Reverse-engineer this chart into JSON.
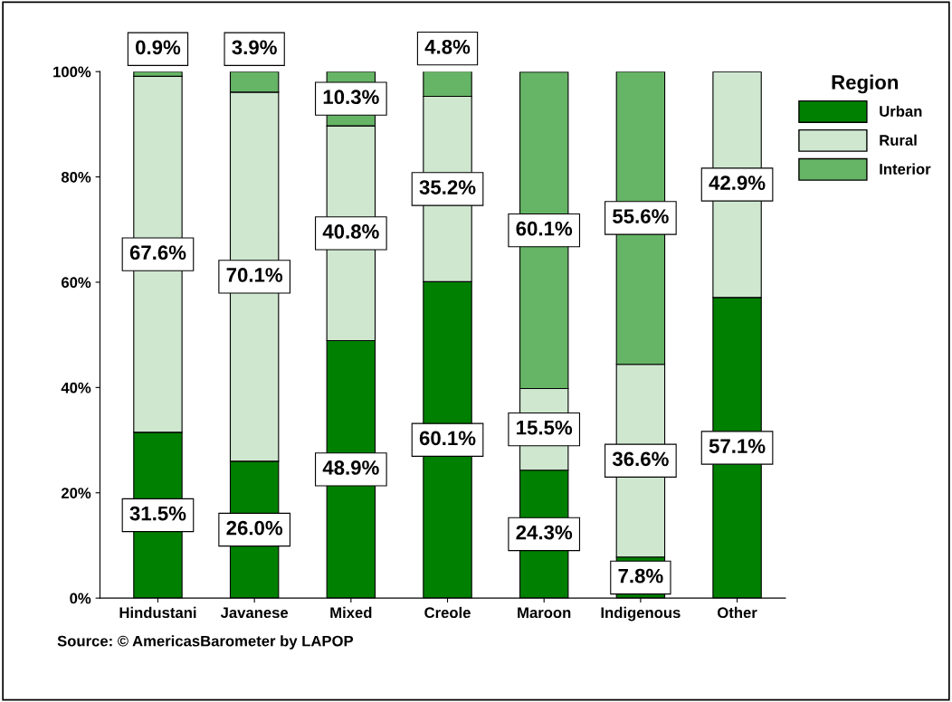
{
  "chart_data": {
    "type": "bar",
    "stacked": true,
    "categories": [
      "Hindustani",
      "Javanese",
      "Mixed",
      "Creole",
      "Maroon",
      "Indigenous",
      "Other"
    ],
    "series": [
      {
        "name": "Urban",
        "color": "#008000",
        "values": [
          31.5,
          26.0,
          48.9,
          60.1,
          24.3,
          7.8,
          57.1
        ],
        "value_labels": [
          "31.5%",
          "26.0%",
          "48.9%",
          "60.1%",
          "24.3%",
          "7.8%",
          "57.1%"
        ]
      },
      {
        "name": "Rural",
        "color": "#cfe7cf",
        "values": [
          67.6,
          70.1,
          40.8,
          35.2,
          15.5,
          36.6,
          42.9
        ],
        "value_labels": [
          "67.6%",
          "70.1%",
          "40.8%",
          "35.2%",
          "15.5%",
          "36.6%",
          "42.9%"
        ]
      },
      {
        "name": "Interior",
        "color": "#66b466",
        "values": [
          0.9,
          3.9,
          10.3,
          4.8,
          60.1,
          55.6,
          null
        ],
        "value_labels": [
          "0.9%",
          "3.9%",
          "10.3%",
          "4.8%",
          "60.1%",
          "55.6%",
          null
        ]
      }
    ],
    "ylim": [
      0,
      100
    ],
    "yticks": [
      {
        "value": 0,
        "label": "0%"
      },
      {
        "value": 20,
        "label": "20%"
      },
      {
        "value": 40,
        "label": "40%"
      },
      {
        "value": 60,
        "label": "60%"
      },
      {
        "value": 80,
        "label": "80%"
      },
      {
        "value": 100,
        "label": "100%"
      }
    ],
    "legend": "top right",
    "legend_title": "Region",
    "grid": false,
    "annotations": [
      "Source: © AmericasBarometer by LAPOP"
    ]
  }
}
